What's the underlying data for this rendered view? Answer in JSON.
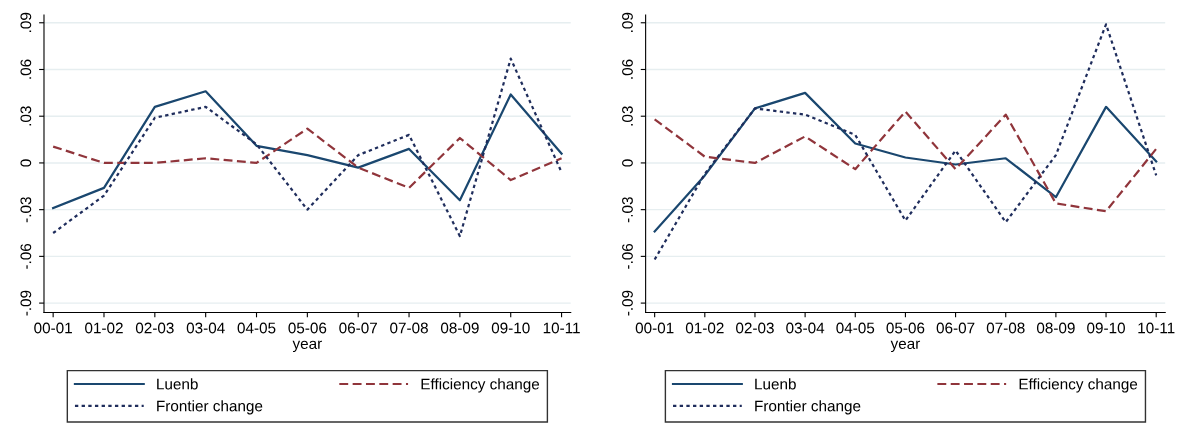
{
  "chart_data": [
    {
      "type": "line",
      "xlabel": "year",
      "categories": [
        "00-01",
        "01-02",
        "02-03",
        "03-04",
        "04-05",
        "05-06",
        "06-07",
        "07-08",
        "08-09",
        "09-10",
        "10-11"
      ],
      "series": [
        {
          "name": "Luenb",
          "color": "#1a476f",
          "line_style": "solid",
          "values": [
            -0.029,
            -0.016,
            0.036,
            0.046,
            0.011,
            0.005,
            -0.003,
            0.009,
            -0.024,
            0.044,
            0.006
          ]
        },
        {
          "name": "Efficiency change",
          "color": "#90353b",
          "line_style": "dashed",
          "values": [
            0.0105,
            0,
            0,
            0.003,
            0,
            0.022,
            -0.003,
            -0.016,
            0.016,
            -0.011,
            0.003
          ]
        },
        {
          "name": "Frontier change",
          "color": "#1f2d5c",
          "line_style": "dotted",
          "values": [
            -0.045,
            -0.021,
            0.029,
            0.036,
            0.012,
            -0.03,
            0.005,
            0.018,
            -0.047,
            0.067,
            -0.006
          ]
        }
      ],
      "ylim": [
        -0.096,
        0.095
      ],
      "yticks": [
        {
          "value": -0.09,
          "label": "-.09"
        },
        {
          "value": -0.06,
          "label": "-.06"
        },
        {
          "value": -0.03,
          "label": "-.03"
        },
        0,
        {
          "value": 0.03,
          "label": ".03"
        },
        {
          "value": 0.06,
          "label": ".06"
        },
        {
          "value": 0.09,
          "label": ".09"
        }
      ],
      "grid": "y",
      "legend": "bottom"
    },
    {
      "type": "line",
      "xlabel": "year",
      "categories": [
        "00-01",
        "01-02",
        "02-03",
        "03-04",
        "04-05",
        "05-06",
        "06-07",
        "07-08",
        "08-09",
        "09-10",
        "10-11"
      ],
      "series": [
        {
          "name": "Luenb",
          "color": "#1a476f",
          "line_style": "solid",
          "values": [
            -0.044,
            -0.008,
            0.035,
            0.045,
            0.0125,
            0.0035,
            -0.001,
            0.003,
            -0.022,
            0.036,
            0.001
          ]
        },
        {
          "name": "Efficiency change",
          "color": "#90353b",
          "line_style": "dashed",
          "values": [
            0.028,
            0.004,
            0,
            0.017,
            -0.004,
            0.033,
            -0.004,
            0.031,
            -0.026,
            -0.031,
            0.009
          ]
        },
        {
          "name": "Frontier change",
          "color": "#1f2d5c",
          "line_style": "dotted",
          "values": [
            -0.062,
            -0.007,
            0.035,
            0.031,
            0.018,
            -0.037,
            0.008,
            -0.038,
            0.005,
            0.089,
            -0.008
          ]
        }
      ],
      "ylim": [
        -0.096,
        0.095
      ],
      "yticks": [
        {
          "value": -0.09,
          "label": "-.09"
        },
        {
          "value": -0.06,
          "label": "-.06"
        },
        {
          "value": -0.03,
          "label": "-.03"
        },
        0,
        {
          "value": 0.03,
          "label": ".03"
        },
        {
          "value": 0.06,
          "label": ".06"
        },
        {
          "value": 0.09,
          "label": ".09"
        }
      ],
      "grid": "y",
      "legend": "bottom"
    }
  ]
}
